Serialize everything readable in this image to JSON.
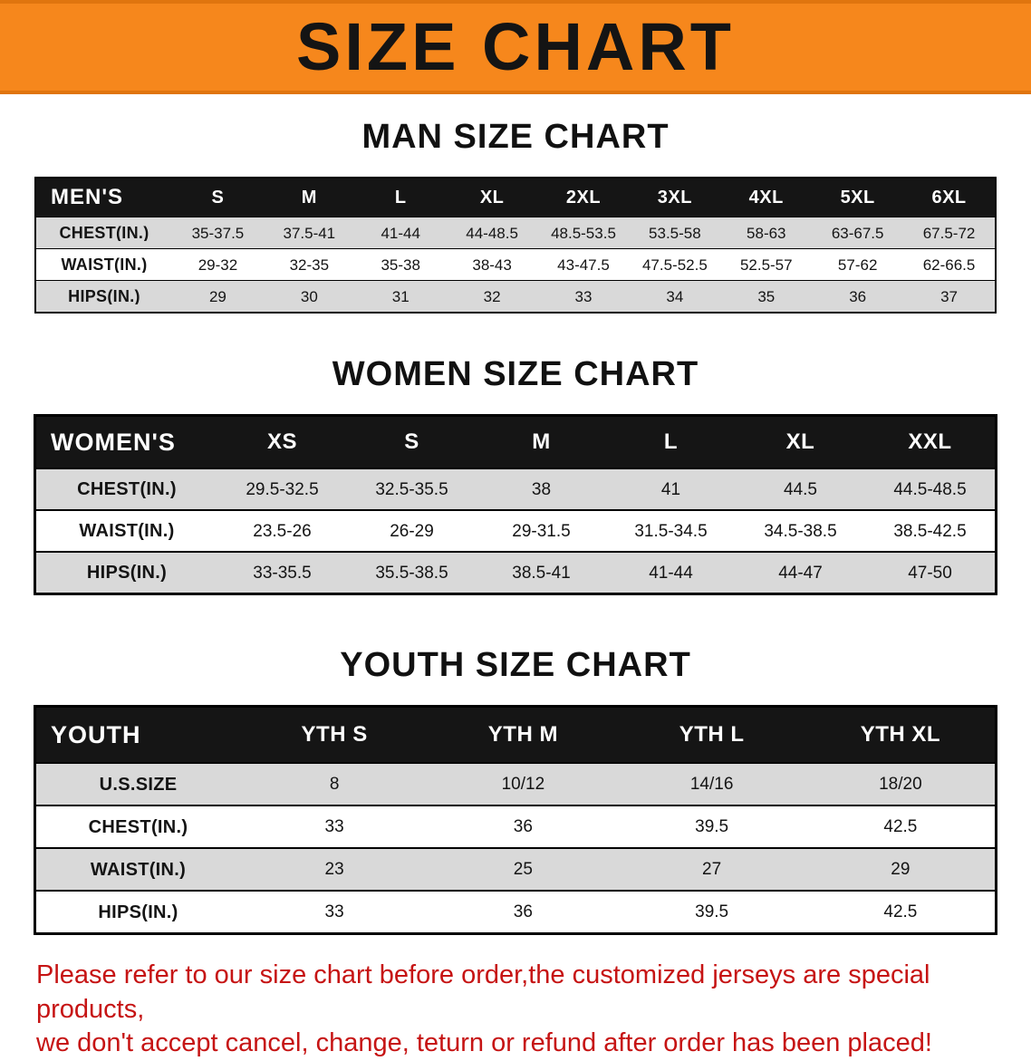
{
  "banner": {
    "title": "SIZE CHART",
    "bg_color": "#f6871c"
  },
  "sections": [
    {
      "heading": "MAN SIZE CHART"
    },
    {
      "heading": "WOMEN SIZE CHART"
    },
    {
      "heading": "YOUTH SIZE CHART"
    }
  ],
  "chart_data": [
    {
      "type": "table",
      "title": "MAN SIZE CHART",
      "header": [
        "MEN'S",
        "S",
        "M",
        "L",
        "XL",
        "2XL",
        "3XL",
        "4XL",
        "5XL",
        "6XL"
      ],
      "rows": [
        [
          "CHEST(IN.)",
          "35-37.5",
          "37.5-41",
          "41-44",
          "44-48.5",
          "48.5-53.5",
          "53.5-58",
          "58-63",
          "63-67.5",
          "67.5-72"
        ],
        [
          "WAIST(IN.)",
          "29-32",
          "32-35",
          "35-38",
          "38-43",
          "43-47.5",
          "47.5-52.5",
          "52.5-57",
          "57-62",
          "62-66.5"
        ],
        [
          "HIPS(IN.)",
          "29",
          "30",
          "31",
          "32",
          "33",
          "34",
          "35",
          "36",
          "37"
        ]
      ]
    },
    {
      "type": "table",
      "title": "WOMEN SIZE CHART",
      "header": [
        "WOMEN'S",
        "XS",
        "S",
        "M",
        "L",
        "XL",
        "XXL"
      ],
      "rows": [
        [
          "CHEST(IN.)",
          "29.5-32.5",
          "32.5-35.5",
          "38",
          "41",
          "44.5",
          "44.5-48.5"
        ],
        [
          "WAIST(IN.)",
          "23.5-26",
          "26-29",
          "29-31.5",
          "31.5-34.5",
          "34.5-38.5",
          "38.5-42.5"
        ],
        [
          "HIPS(IN.)",
          "33-35.5",
          "35.5-38.5",
          "38.5-41",
          "41-44",
          "44-47",
          "47-50"
        ]
      ]
    },
    {
      "type": "table",
      "title": "YOUTH SIZE CHART",
      "header": [
        "YOUTH",
        "YTH S",
        "YTH M",
        "YTH L",
        "YTH XL"
      ],
      "rows": [
        [
          "U.S.SIZE",
          "8",
          "10/12",
          "14/16",
          "18/20"
        ],
        [
          "CHEST(IN.)",
          "33",
          "36",
          "39.5",
          "42.5"
        ],
        [
          "WAIST(IN.)",
          "23",
          "25",
          "27",
          "29"
        ],
        [
          "HIPS(IN.)",
          "33",
          "36",
          "39.5",
          "42.5"
        ]
      ]
    }
  ],
  "footer": {
    "line1": "Please refer to our size chart before order,the customized jerseys are special products,",
    "line2": "we don't accept cancel, change, teturn or refund after order has been placed!"
  }
}
